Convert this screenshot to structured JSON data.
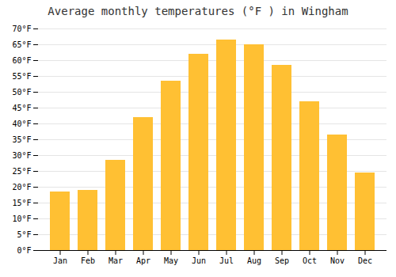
{
  "chart_data": {
    "type": "bar",
    "title": "Average monthly temperatures (°F ) in Wingham",
    "categories": [
      "Jan",
      "Feb",
      "Mar",
      "Apr",
      "May",
      "Jun",
      "Jul",
      "Aug",
      "Sep",
      "Oct",
      "Nov",
      "Dec"
    ],
    "values": [
      18.5,
      19.0,
      28.5,
      42.0,
      53.5,
      62.0,
      66.5,
      65.0,
      58.5,
      47.0,
      36.5,
      24.5
    ],
    "color": "#FFC033",
    "ylim": [
      0,
      70
    ],
    "yticks": [
      {
        "value": 0,
        "label": "0°F"
      },
      {
        "value": 5,
        "label": "5°F"
      },
      {
        "value": 10,
        "label": "10°F"
      },
      {
        "value": 15,
        "label": "15°F"
      },
      {
        "value": 20,
        "label": "20°F"
      },
      {
        "value": 25,
        "label": "25°F"
      },
      {
        "value": 30,
        "label": "30°F"
      },
      {
        "value": 35,
        "label": "35°F"
      },
      {
        "value": 40,
        "label": "40°F"
      },
      {
        "value": 45,
        "label": "45°F"
      },
      {
        "value": 50,
        "label": "50°F"
      },
      {
        "value": 55,
        "label": "55°F"
      },
      {
        "value": 60,
        "label": "60°F"
      },
      {
        "value": 65,
        "label": "65°F"
      },
      {
        "value": 70,
        "label": "70°F"
      }
    ],
    "grid": true
  }
}
